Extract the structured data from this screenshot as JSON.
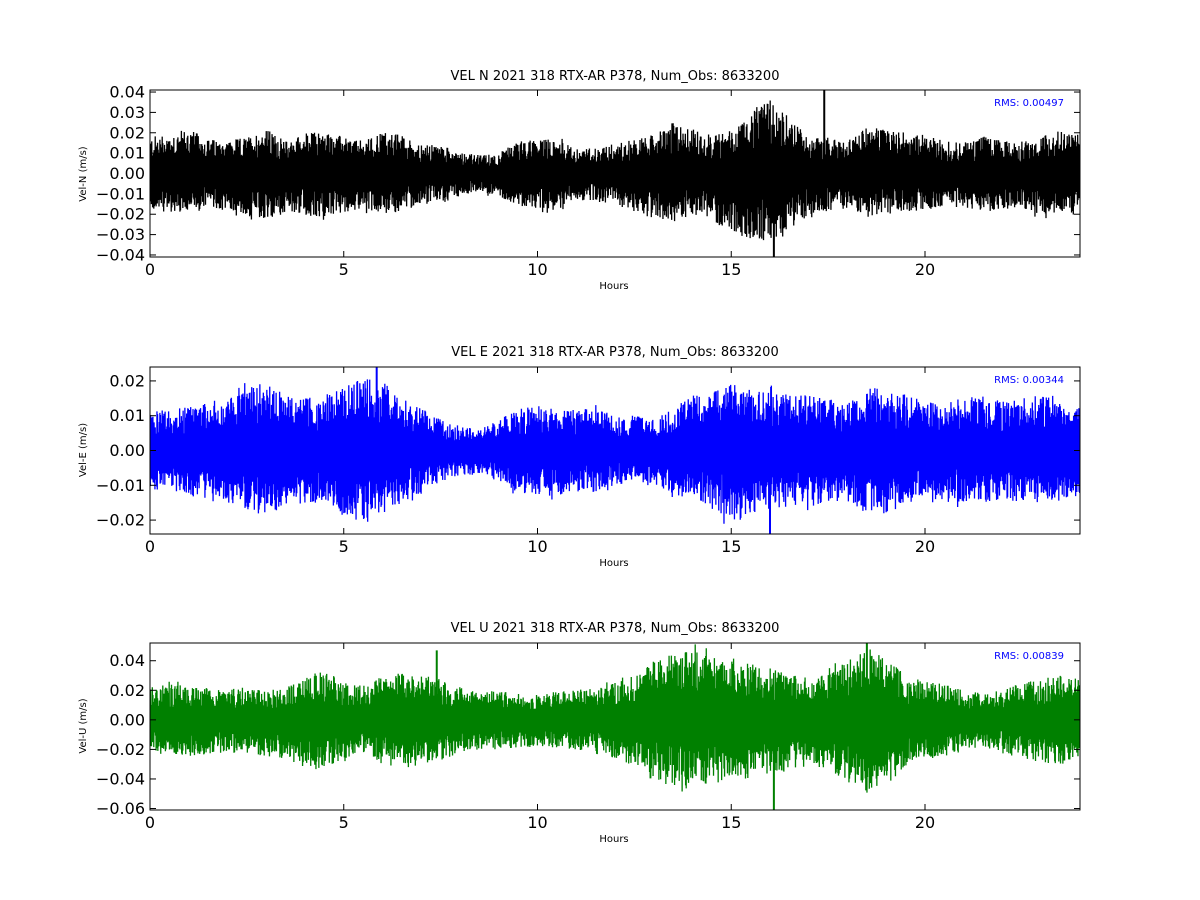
{
  "chart_data": [
    {
      "type": "line",
      "title": "VEL N 2021 318 RTX-AR  P378, Num_Obs: 8633200",
      "xlabel": "Hours",
      "ylabel": "Vel-N (m/s)",
      "xlim": [
        0,
        24
      ],
      "ylim": [
        -0.041,
        0.041
      ],
      "xticks": [
        "0",
        "5",
        "10",
        "15",
        "20"
      ],
      "yticks": [
        "0.04",
        "0.03",
        "0.02",
        "0.01",
        "0.00",
        "−0.01",
        "−0.02",
        "−0.03",
        "−0.04"
      ],
      "grid": false,
      "annotation": "RMS:  0.00497",
      "annotation_color": "#0000ff",
      "color": "#000000",
      "series": [
        {
          "x": [
            0,
            0.5,
            1,
            1.5,
            2,
            2.5,
            3,
            3.5,
            4,
            4.5,
            5,
            5.5,
            6,
            6.5,
            7,
            7.5,
            8,
            8.5,
            9,
            9.5,
            10,
            10.5,
            11,
            11.5,
            12,
            12.5,
            13,
            13.5,
            14,
            14.5,
            15,
            15.5,
            16,
            16.5,
            17,
            17.5,
            18,
            18.5,
            19,
            19.5,
            20,
            20.5,
            21,
            21.5,
            22,
            22.5,
            23,
            23.5,
            24
          ],
          "upper": [
            0.018,
            0.02,
            0.022,
            0.017,
            0.016,
            0.018,
            0.022,
            0.016,
            0.02,
            0.021,
            0.018,
            0.016,
            0.021,
            0.019,
            0.014,
            0.014,
            0.011,
            0.009,
            0.01,
            0.016,
            0.017,
            0.017,
            0.012,
            0.013,
            0.015,
            0.017,
            0.019,
            0.025,
            0.022,
            0.019,
            0.022,
            0.031,
            0.036,
            0.028,
            0.018,
            0.018,
            0.016,
            0.023,
            0.023,
            0.02,
            0.019,
            0.016,
            0.015,
            0.019,
            0.016,
            0.015,
            0.019,
            0.021,
            0.02
          ],
          "lower": [
            -0.018,
            -0.019,
            -0.02,
            -0.017,
            -0.018,
            -0.021,
            -0.024,
            -0.019,
            -0.021,
            -0.022,
            -0.019,
            -0.017,
            -0.02,
            -0.019,
            -0.015,
            -0.015,
            -0.011,
            -0.009,
            -0.011,
            -0.016,
            -0.017,
            -0.018,
            -0.013,
            -0.014,
            -0.015,
            -0.019,
            -0.022,
            -0.024,
            -0.021,
            -0.023,
            -0.028,
            -0.033,
            -0.037,
            -0.03,
            -0.02,
            -0.019,
            -0.017,
            -0.021,
            -0.02,
            -0.019,
            -0.018,
            -0.016,
            -0.017,
            -0.019,
            -0.018,
            -0.017,
            -0.021,
            -0.02,
            -0.019
          ]
        }
      ],
      "spikes": [
        {
          "x": 16.1,
          "y": -0.041
        },
        {
          "x": 17.4,
          "y": 0.041
        }
      ]
    },
    {
      "type": "line",
      "title": "VEL E 2021 318 RTX-AR  P378, Num_Obs: 8633200",
      "xlabel": "Hours",
      "ylabel": "Vel-E (m/s)",
      "xlim": [
        0,
        24
      ],
      "ylim": [
        -0.024,
        0.024
      ],
      "xticks": [
        "0",
        "5",
        "10",
        "15",
        "20"
      ],
      "yticks": [
        "0.02",
        "0.01",
        "0.00",
        "−0.01",
        "−0.02"
      ],
      "grid": false,
      "annotation": "RMS:  0.00344",
      "annotation_color": "#0000ff",
      "color": "#0000ff",
      "series": [
        {
          "x": [
            0,
            0.5,
            1,
            1.5,
            2,
            2.5,
            3,
            3.5,
            4,
            4.5,
            5,
            5.5,
            6,
            6.5,
            7,
            7.5,
            8,
            8.5,
            9,
            9.5,
            10,
            10.5,
            11,
            11.5,
            12,
            12.5,
            13,
            13.5,
            14,
            14.5,
            15,
            15.5,
            16,
            16.5,
            17,
            17.5,
            18,
            18.5,
            19,
            19.5,
            20,
            20.5,
            21,
            21.5,
            22,
            22.5,
            23,
            23.5,
            24
          ],
          "upper": [
            0.011,
            0.012,
            0.013,
            0.014,
            0.015,
            0.018,
            0.02,
            0.016,
            0.015,
            0.016,
            0.018,
            0.021,
            0.02,
            0.015,
            0.012,
            0.009,
            0.007,
            0.006,
            0.009,
            0.012,
            0.013,
            0.013,
            0.012,
            0.012,
            0.01,
            0.01,
            0.009,
            0.012,
            0.016,
            0.017,
            0.019,
            0.018,
            0.017,
            0.016,
            0.016,
            0.015,
            0.014,
            0.02,
            0.018,
            0.016,
            0.014,
            0.014,
            0.015,
            0.016,
            0.014,
            0.015,
            0.016,
            0.014,
            0.013
          ],
          "lower": [
            -0.011,
            -0.012,
            -0.013,
            -0.014,
            -0.015,
            -0.017,
            -0.019,
            -0.016,
            -0.015,
            -0.016,
            -0.019,
            -0.021,
            -0.019,
            -0.015,
            -0.012,
            -0.009,
            -0.007,
            -0.007,
            -0.009,
            -0.012,
            -0.013,
            -0.013,
            -0.012,
            -0.012,
            -0.01,
            -0.01,
            -0.01,
            -0.013,
            -0.016,
            -0.017,
            -0.02,
            -0.019,
            -0.017,
            -0.016,
            -0.016,
            -0.015,
            -0.015,
            -0.018,
            -0.018,
            -0.016,
            -0.015,
            -0.015,
            -0.015,
            -0.015,
            -0.014,
            -0.015,
            -0.015,
            -0.014,
            -0.013
          ]
        }
      ],
      "spikes": [
        {
          "x": 5.85,
          "y": 0.024
        },
        {
          "x": 16.0,
          "y": -0.024
        }
      ]
    },
    {
      "type": "line",
      "title": "VEL U 2021 318 RTX-AR  P378, Num_Obs: 8633200",
      "xlabel": "Hours",
      "ylabel": "Vel-U (m/s)",
      "xlim": [
        0,
        24
      ],
      "ylim": [
        -0.061,
        0.052
      ],
      "xticks": [
        "0",
        "5",
        "10",
        "15",
        "20"
      ],
      "yticks": [
        "0.04",
        "0.02",
        "0.00",
        "−0.02",
        "−0.04",
        "−0.06"
      ],
      "grid": false,
      "annotation": "RMS:  0.00839",
      "annotation_color": "#0000ff",
      "color": "#008000",
      "series": [
        {
          "x": [
            0,
            0.5,
            1,
            1.5,
            2,
            2.5,
            3,
            3.5,
            4,
            4.5,
            5,
            5.5,
            6,
            6.5,
            7,
            7.5,
            8,
            8.5,
            9,
            9.5,
            10,
            10.5,
            11,
            11.5,
            12,
            12.5,
            13,
            13.5,
            14,
            14.5,
            15,
            15.5,
            16,
            16.5,
            17,
            17.5,
            18,
            18.5,
            19,
            19.5,
            20,
            20.5,
            21,
            21.5,
            22,
            22.5,
            23,
            23.5,
            24
          ],
          "upper": [
            0.022,
            0.024,
            0.023,
            0.022,
            0.021,
            0.022,
            0.02,
            0.022,
            0.03,
            0.033,
            0.026,
            0.023,
            0.03,
            0.032,
            0.03,
            0.028,
            0.022,
            0.019,
            0.02,
            0.018,
            0.017,
            0.019,
            0.02,
            0.022,
            0.025,
            0.03,
            0.04,
            0.045,
            0.048,
            0.045,
            0.04,
            0.038,
            0.036,
            0.032,
            0.028,
            0.032,
            0.04,
            0.05,
            0.042,
            0.03,
            0.026,
            0.024,
            0.02,
            0.018,
            0.02,
            0.025,
            0.028,
            0.03,
            0.028
          ],
          "lower": [
            -0.022,
            -0.024,
            -0.025,
            -0.023,
            -0.022,
            -0.023,
            -0.025,
            -0.026,
            -0.032,
            -0.035,
            -0.028,
            -0.024,
            -0.03,
            -0.034,
            -0.03,
            -0.028,
            -0.022,
            -0.02,
            -0.02,
            -0.019,
            -0.018,
            -0.019,
            -0.02,
            -0.023,
            -0.026,
            -0.032,
            -0.042,
            -0.046,
            -0.047,
            -0.044,
            -0.04,
            -0.04,
            -0.038,
            -0.034,
            -0.03,
            -0.034,
            -0.042,
            -0.05,
            -0.044,
            -0.032,
            -0.027,
            -0.025,
            -0.021,
            -0.019,
            -0.021,
            -0.026,
            -0.029,
            -0.03,
            -0.028
          ]
        }
      ],
      "spikes": [
        {
          "x": 7.4,
          "y": 0.047
        },
        {
          "x": 16.1,
          "y": -0.061
        },
        {
          "x": 18.5,
          "y": 0.052
        }
      ]
    }
  ]
}
